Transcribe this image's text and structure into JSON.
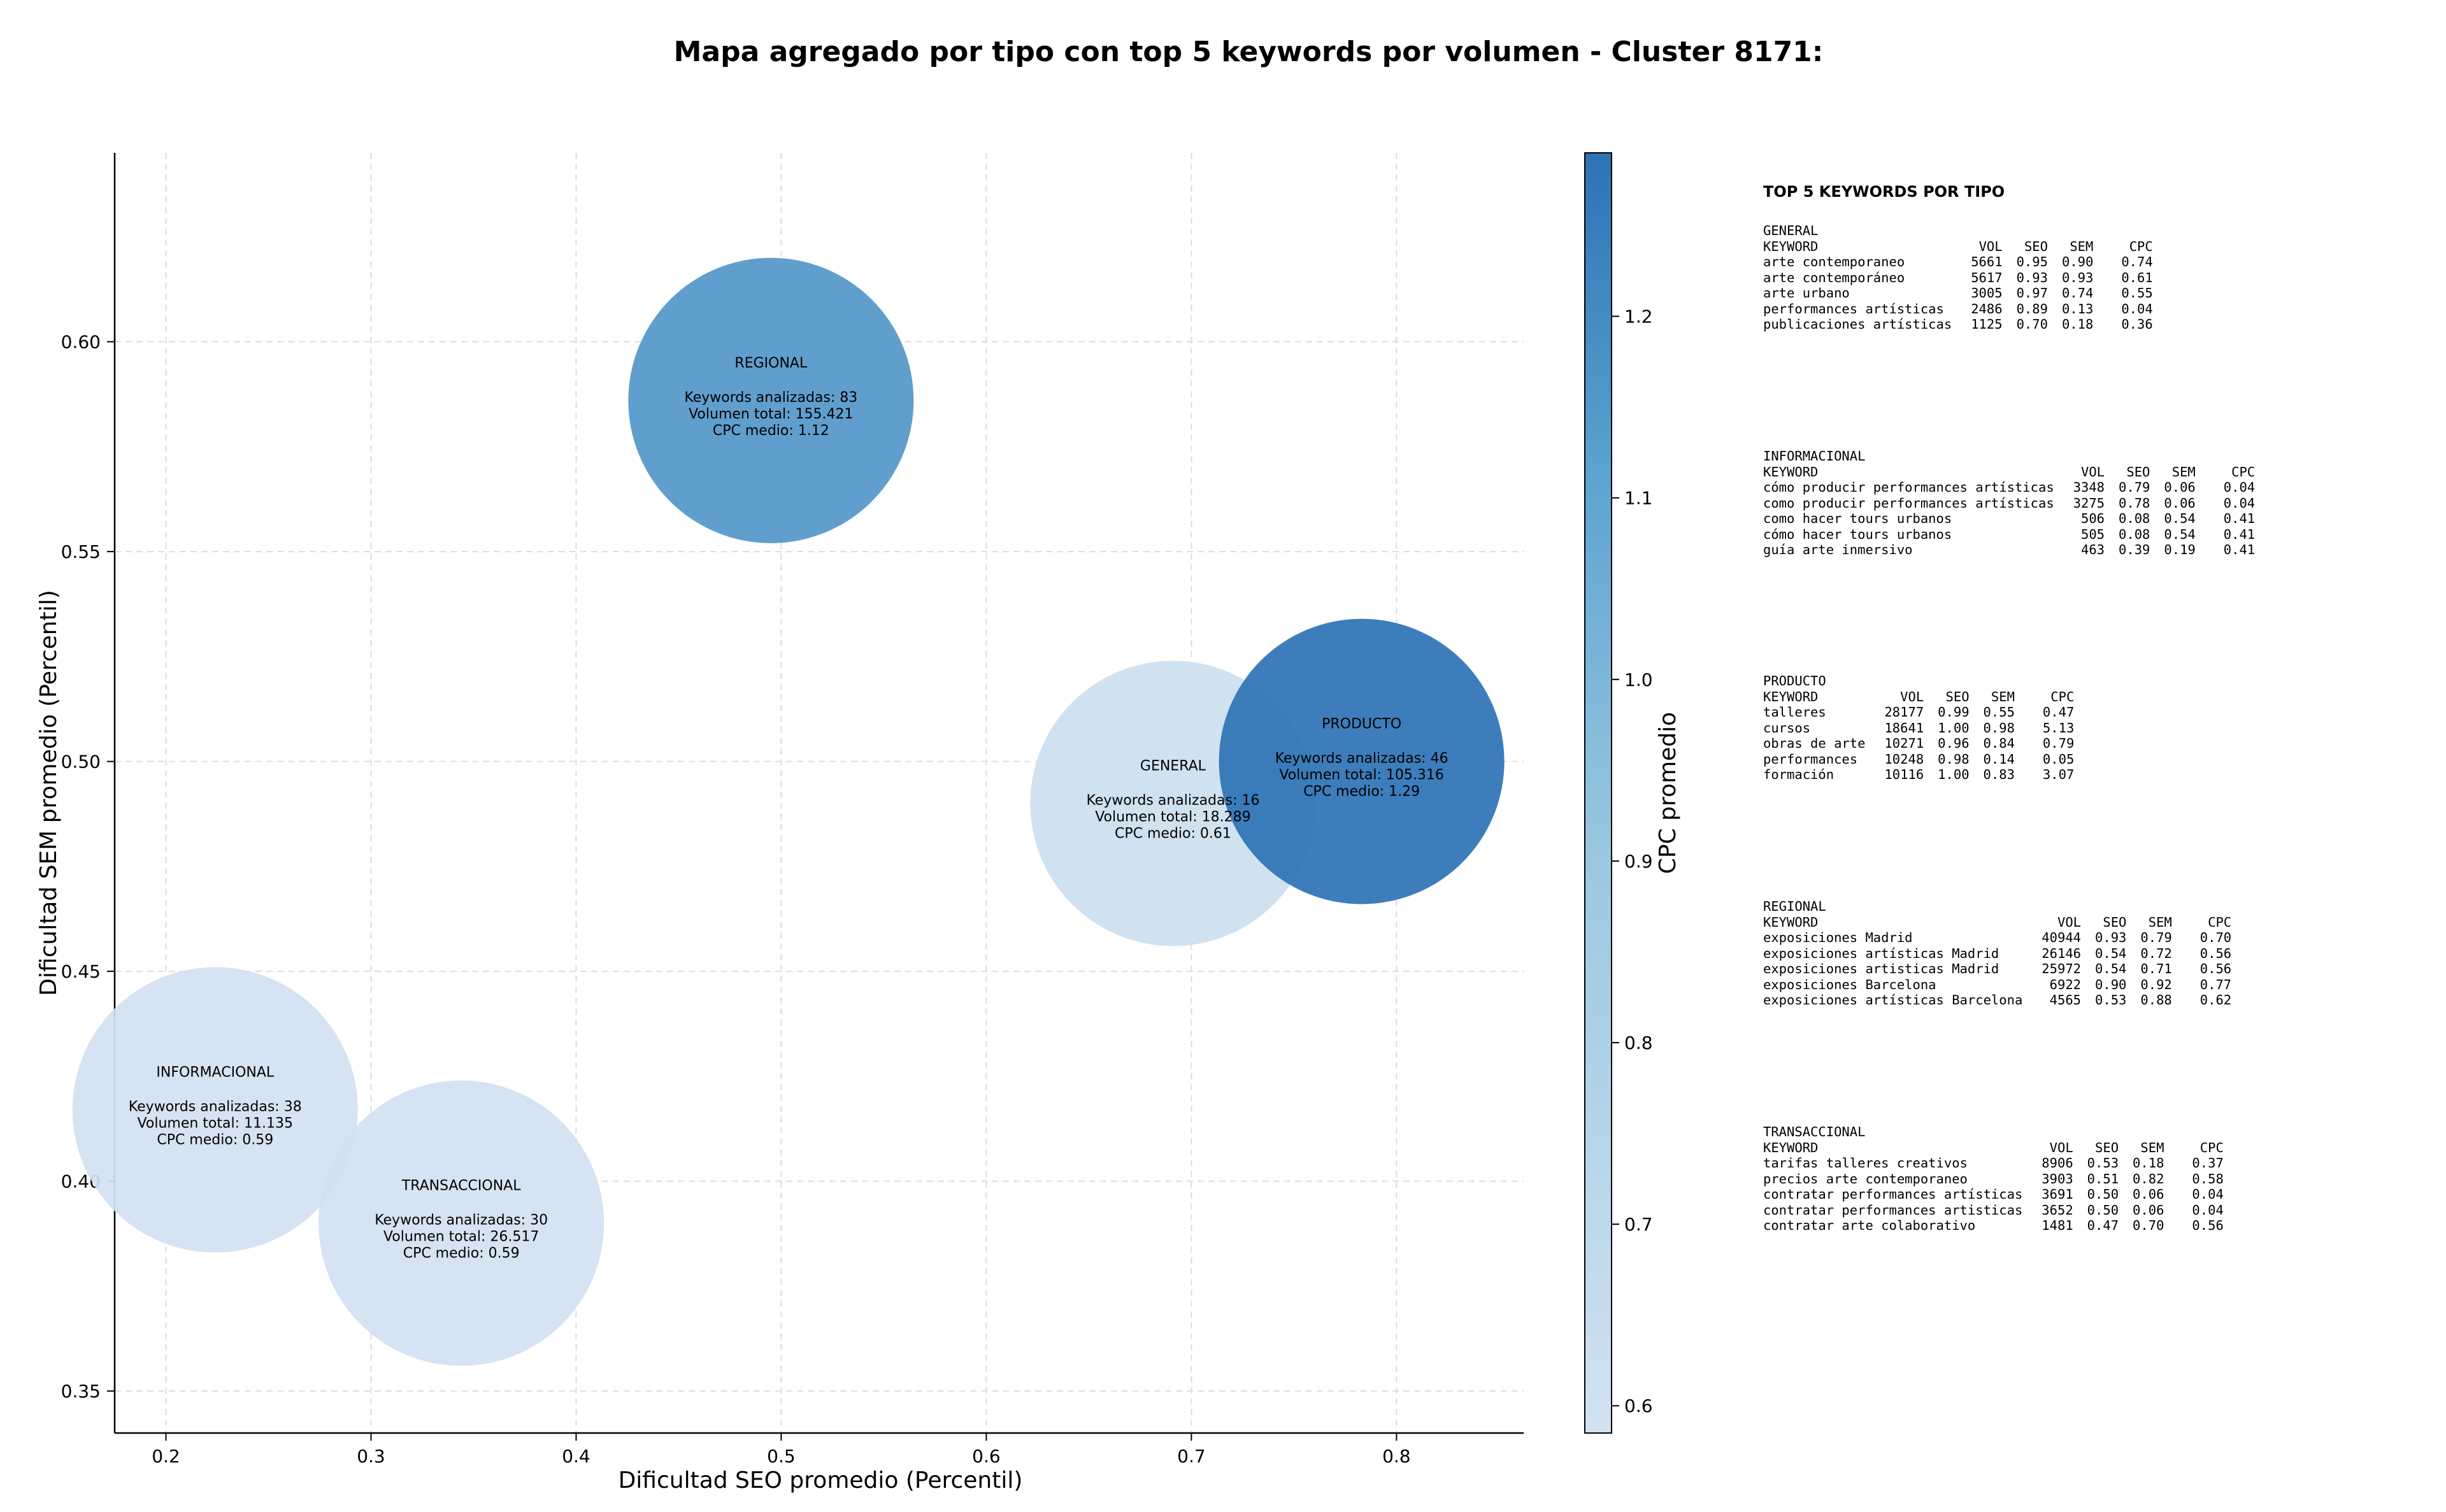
{
  "chart_data": {
    "type": "scatter",
    "title": "Mapa agregado por tipo con top 5 keywords por volumen - Cluster 8171:",
    "xlabel": "Dificultad SEO promedio (Percentil)",
    "ylabel": "Dificultad SEM promedio (Percentil)",
    "colorbar_label": "CPC promedio",
    "xlim": [
      0.175,
      0.862
    ],
    "ylim": [
      0.34,
      0.645
    ],
    "color_range": [
      0.585,
      1.29
    ],
    "x_ticks": [
      "0.2",
      "0.3",
      "0.4",
      "0.5",
      "0.6",
      "0.7",
      "0.8"
    ],
    "y_ticks": [
      "0.35",
      "0.40",
      "0.45",
      "0.50",
      "0.55",
      "0.60"
    ],
    "colorbar_ticks": [
      "0.6",
      "0.7",
      "0.8",
      "0.9",
      "1.0",
      "1.1",
      "1.2"
    ],
    "grid": true,
    "colors": {
      "low": "#d2e2f1",
      "mid": "#6aaed6",
      "high": "#2d72b5"
    },
    "points": [
      {
        "name": "INFORMACIONAL",
        "x": 0.224,
        "y": 0.417,
        "cpc": 0.59,
        "lines": [
          "Keywords analizadas: 38",
          "Volumen total: 11.135",
          "CPC medio: 0.59"
        ]
      },
      {
        "name": "TRANSACCIONAL",
        "x": 0.344,
        "y": 0.39,
        "cpc": 0.59,
        "lines": [
          "Keywords analizadas: 30",
          "Volumen total: 26.517",
          "CPC medio: 0.59"
        ]
      },
      {
        "name": "REGIONAL",
        "x": 0.495,
        "y": 0.586,
        "cpc": 1.12,
        "lines": [
          "Keywords analizadas: 83",
          "Volumen total: 155.421",
          "CPC medio: 1.12"
        ]
      },
      {
        "name": "GENERAL",
        "x": 0.691,
        "y": 0.49,
        "cpc": 0.61,
        "lines": [
          "Keywords analizadas: 16",
          "Volumen total: 18.289",
          "CPC medio: 0.61"
        ]
      },
      {
        "name": "PRODUCTO",
        "x": 0.783,
        "y": 0.5,
        "cpc": 1.29,
        "lines": [
          "Keywords analizadas: 46",
          "Volumen total: 105.316",
          "CPC medio: 1.29"
        ]
      }
    ]
  },
  "keyword_panel": {
    "title": "TOP 5 KEYWORDS POR TIPO",
    "headers": [
      "KEYWORD",
      "VOL",
      "SEO",
      "SEM",
      "CPC"
    ],
    "groups": [
      {
        "type": "GENERAL",
        "rows": [
          [
            "arte contemporaneo",
            "5661",
            "0.95",
            "0.90",
            "0.74"
          ],
          [
            "arte contemporáneo",
            "5617",
            "0.93",
            "0.93",
            "0.61"
          ],
          [
            "arte urbano",
            "3005",
            "0.97",
            "0.74",
            "0.55"
          ],
          [
            "performances artísticas",
            "2486",
            "0.89",
            "0.13",
            "0.04"
          ],
          [
            "publicaciones artísticas",
            "1125",
            "0.70",
            "0.18",
            "0.36"
          ]
        ]
      },
      {
        "type": "INFORMACIONAL",
        "rows": [
          [
            "cómo producir performances artísticas",
            "3348",
            "0.79",
            "0.06",
            "0.04"
          ],
          [
            "como producir performances artísticas",
            "3275",
            "0.78",
            "0.06",
            "0.04"
          ],
          [
            "como hacer tours urbanos",
            "506",
            "0.08",
            "0.54",
            "0.41"
          ],
          [
            "cómo hacer tours urbanos",
            "505",
            "0.08",
            "0.54",
            "0.41"
          ],
          [
            "guía arte inmersivo",
            "463",
            "0.39",
            "0.19",
            "0.41"
          ]
        ]
      },
      {
        "type": "PRODUCTO",
        "rows": [
          [
            "talleres",
            "28177",
            "0.99",
            "0.55",
            "0.47"
          ],
          [
            "cursos",
            "18641",
            "1.00",
            "0.98",
            "5.13"
          ],
          [
            "obras de arte",
            "10271",
            "0.96",
            "0.84",
            "0.79"
          ],
          [
            "performances",
            "10248",
            "0.98",
            "0.14",
            "0.05"
          ],
          [
            "formación",
            "10116",
            "1.00",
            "0.83",
            "3.07"
          ]
        ]
      },
      {
        "type": "REGIONAL",
        "rows": [
          [
            "exposiciones Madrid",
            "40944",
            "0.93",
            "0.79",
            "0.70"
          ],
          [
            "exposiciones artísticas Madrid",
            "26146",
            "0.54",
            "0.72",
            "0.56"
          ],
          [
            "exposiciones artisticas Madrid",
            "25972",
            "0.54",
            "0.71",
            "0.56"
          ],
          [
            "exposiciones Barcelona",
            "6922",
            "0.90",
            "0.92",
            "0.77"
          ],
          [
            "exposiciones artísticas Barcelona",
            "4565",
            "0.53",
            "0.88",
            "0.62"
          ]
        ]
      },
      {
        "type": "TRANSACCIONAL",
        "rows": [
          [
            "tarifas talleres creativos",
            "8906",
            "0.53",
            "0.18",
            "0.37"
          ],
          [
            "precios arte contemporaneo",
            "3903",
            "0.51",
            "0.82",
            "0.58"
          ],
          [
            "contratar performances artísticas",
            "3691",
            "0.50",
            "0.06",
            "0.04"
          ],
          [
            "contratar performances artisticas",
            "3652",
            "0.50",
            "0.06",
            "0.04"
          ],
          [
            "contratar arte colaborativo",
            "1481",
            "0.47",
            "0.70",
            "0.56"
          ]
        ]
      }
    ]
  }
}
